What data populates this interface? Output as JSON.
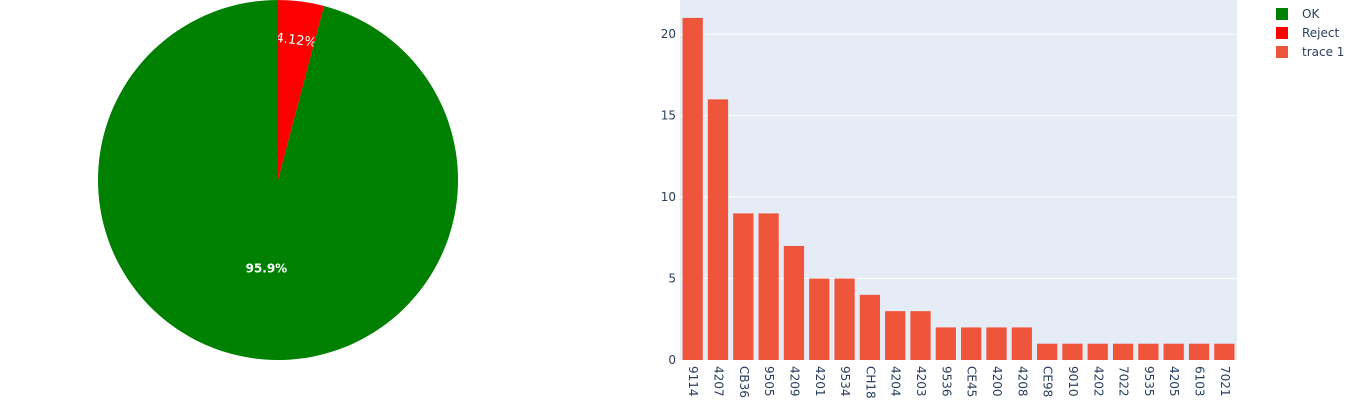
{
  "chart_data": [
    {
      "type": "pie",
      "start_angle_deg": 90,
      "direction": "clockwise",
      "slices": [
        {
          "label": "Reject",
          "value": 4.12,
          "text": "4.12%",
          "color": "#ff0000"
        },
        {
          "label": "OK",
          "value": 95.88,
          "text": "95.9%",
          "color": "#008000"
        }
      ]
    },
    {
      "type": "bar",
      "series_name": "trace 1",
      "color": "#ef553b",
      "plot_background": "#e5ecf6",
      "categories": [
        "9114",
        "4207",
        "CB36",
        "9505",
        "4209",
        "4201",
        "9534",
        "CH18",
        "4204",
        "4203",
        "9536",
        "CE45",
        "4200",
        "4208",
        "CE98",
        "9010",
        "4202",
        "7022",
        "9535",
        "4205",
        "6103",
        "7021"
      ],
      "values": [
        21,
        16,
        9,
        9,
        7,
        5,
        5,
        4,
        3,
        3,
        2,
        2,
        2,
        2,
        1,
        1,
        1,
        1,
        1,
        1,
        1,
        1
      ],
      "ylim": [
        0,
        22.1
      ],
      "yticks": [
        0,
        5,
        10,
        15,
        20
      ],
      "grid": true,
      "xlabel": "",
      "ylabel": ""
    }
  ],
  "legend": {
    "placement": "top-right",
    "items": [
      {
        "label": "OK",
        "color": "#008000"
      },
      {
        "label": "Reject",
        "color": "#ff0000"
      },
      {
        "label": "trace 1",
        "color": "#ef553b"
      }
    ]
  }
}
